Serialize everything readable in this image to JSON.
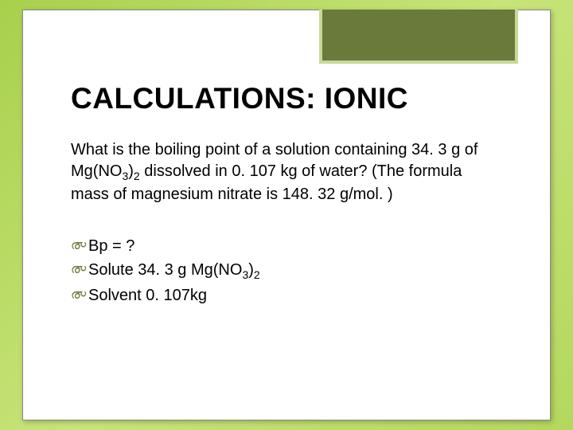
{
  "slide": {
    "title": "CALCULATIONS: IONIC",
    "question_pre": "What is the boiling point of a solution containing 34. 3 g of Mg(NO",
    "question_sub1": "3",
    "question_mid1": ")",
    "question_sub2": "2",
    "question_post": " dissolved in 0. 107 kg of water? (The formula mass of magnesium nitrate is 148. 32 g/mol. )",
    "bullets": {
      "bp": "Bp  = ?",
      "solute_pre": "Solute  34. 3 g Mg(NO",
      "solute_sub1": "3",
      "solute_mid": ")",
      "solute_sub2": "2",
      "solvent": "Solvent 0. 107kg"
    }
  },
  "style": {
    "background_gradient": [
      "#a8d04c",
      "#c8e47a",
      "#b4d85e"
    ],
    "frame_bg": "#ffffff",
    "corner_box_fill": "#6a7a3a",
    "corner_box_border": "#c8d89a",
    "title_color": "#000000",
    "body_color": "#000000",
    "bullet_color": "#6a7a3a",
    "title_fontsize": 37,
    "body_fontsize": 20
  }
}
